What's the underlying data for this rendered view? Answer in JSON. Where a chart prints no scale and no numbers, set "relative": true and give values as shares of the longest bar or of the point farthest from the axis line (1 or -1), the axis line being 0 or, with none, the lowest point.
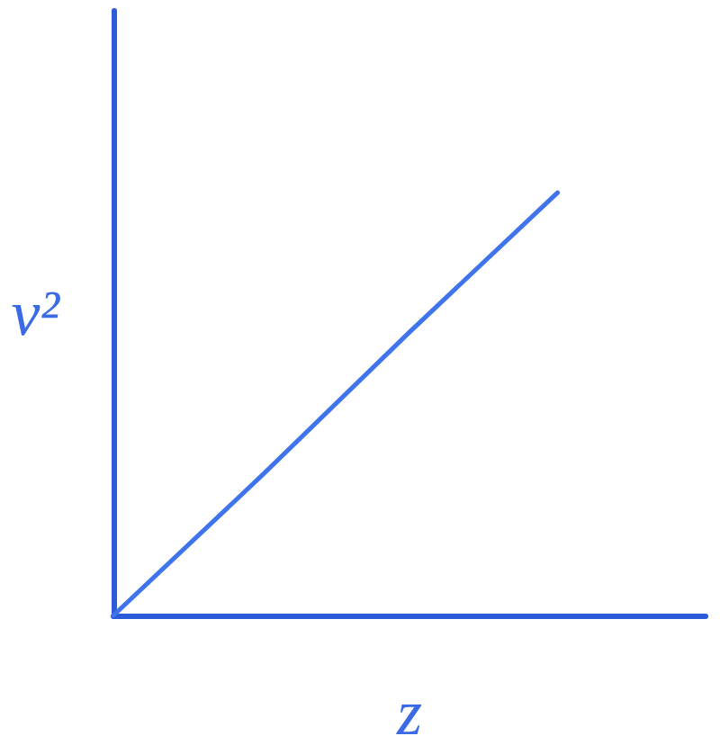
{
  "chart_data": {
    "type": "line",
    "xlabel": "z",
    "ylabel": "v²",
    "categories": [
      null,
      null,
      null,
      null,
      null
    ],
    "values": [
      0,
      0.33,
      0.67,
      1,
      null
    ],
    "color": "#3f74ec",
    "relative": true,
    "marker": "none"
  }
}
